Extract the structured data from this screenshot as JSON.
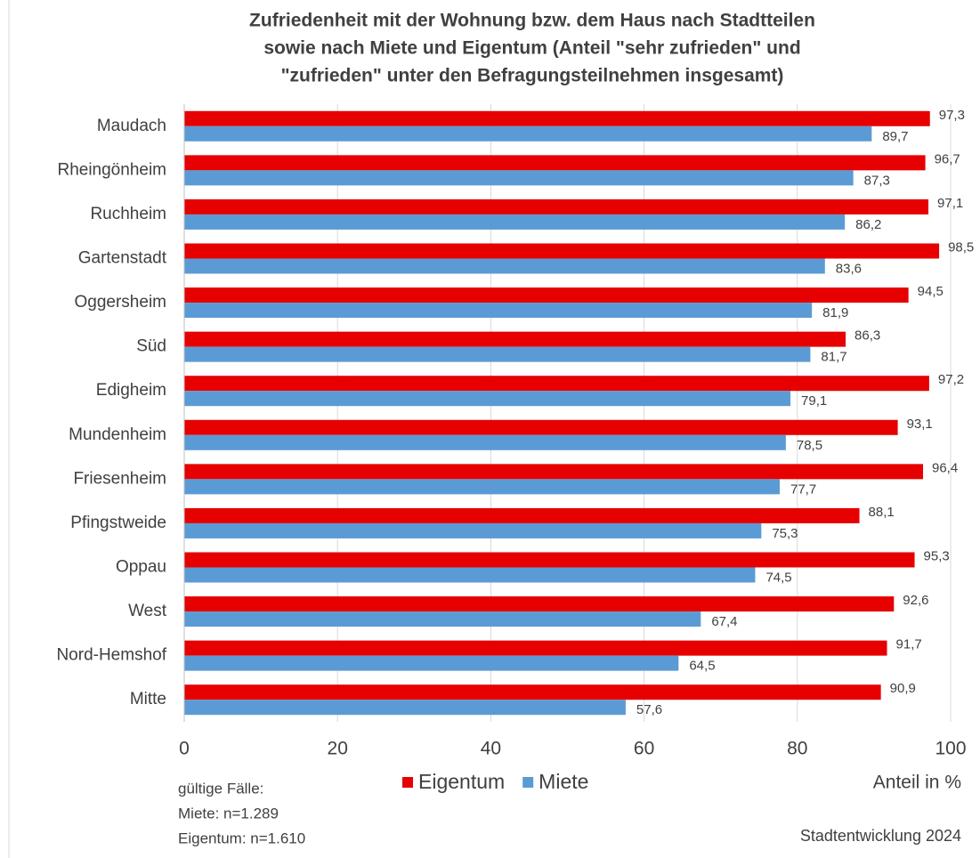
{
  "chart_data": {
    "type": "barh",
    "title": [
      "Zufriedenheit  mit der Wohnung bzw. dem Haus nach Stadtteilen",
      "sowie nach Miete und Eigentum (Anteil \"sehr zufrieden\" und",
      "\"zufrieden\" unter den Befragungsteilnehmen   insgesamt)"
    ],
    "categories": [
      "Maudach",
      "Rheingönheim",
      "Ruchheim",
      "Gartenstadt",
      "Oggersheim",
      "Süd",
      "Edigheim",
      "Mundenheim",
      "Friesenheim",
      "Pfingstweide",
      "Oppau",
      "West",
      "Nord-Hemshof",
      "Mitte"
    ],
    "series": [
      {
        "name": "Eigentum",
        "color": "#e60000",
        "values": [
          97.3,
          96.7,
          97.1,
          98.5,
          94.5,
          86.3,
          97.2,
          93.1,
          96.4,
          88.1,
          95.3,
          92.6,
          91.7,
          90.9
        ],
        "value_labels": [
          "97,3",
          "96,7",
          "97,1",
          "98,5",
          "94,5",
          "86,3",
          "97,2",
          "93,1",
          "96,4",
          "88,1",
          "95,3",
          "92,6",
          "91,7",
          "90,9"
        ]
      },
      {
        "name": "Miete",
        "color": "#5b9bd5",
        "values": [
          89.7,
          87.3,
          86.2,
          83.6,
          81.9,
          81.7,
          79.1,
          78.5,
          77.7,
          75.3,
          74.5,
          67.4,
          64.5,
          57.6
        ],
        "value_labels": [
          "89,7",
          "87,3",
          "86,2",
          "83,6",
          "81,9",
          "81,7",
          "79,1",
          "78,5",
          "77,7",
          "75,3",
          "74,5",
          "67,4",
          "64,5",
          "57,6"
        ]
      }
    ],
    "xlim": [
      0,
      100
    ],
    "xticks": [
      0,
      20,
      40,
      60,
      80,
      100
    ],
    "grid": true,
    "x_label": "Anteil in %",
    "notes": [
      "gültige Fälle:",
      "Miete:  n=1.289",
      "Eigentum:  n=1.610"
    ],
    "source": "Stadtentwicklung  2024",
    "legend": "bottom"
  }
}
